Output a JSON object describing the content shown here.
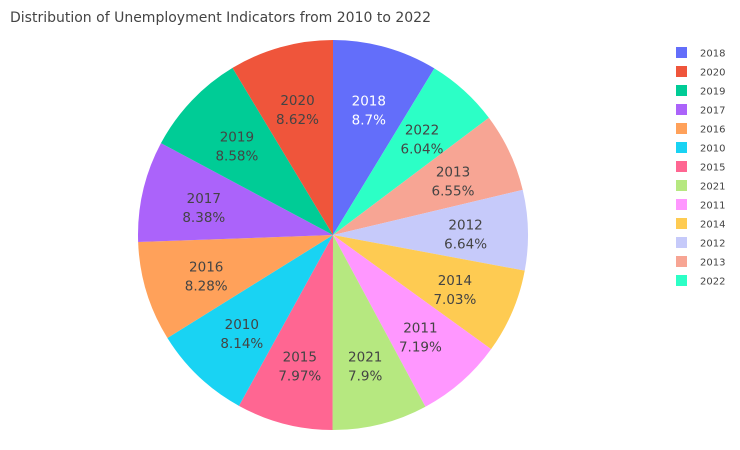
{
  "chart_data": {
    "type": "pie",
    "title": "Distribution of Unemployment Indicators from 2010 to 2022",
    "direction": "clockwise",
    "start": "top",
    "legend_position": "right",
    "slices": [
      {
        "label": "2018",
        "percent": 8.7,
        "display": "8.7%",
        "color": "#636efa",
        "text_color": "#ffffff"
      },
      {
        "label": "2022",
        "percent": 6.04,
        "display": "6.04%",
        "color": "#2cffc6",
        "text_color": "#444444"
      },
      {
        "label": "2013",
        "percent": 6.55,
        "display": "6.55%",
        "color": "#f7a594",
        "text_color": "#444444"
      },
      {
        "label": "2012",
        "percent": 6.64,
        "display": "6.64%",
        "color": "#c6cafa",
        "text_color": "#444444"
      },
      {
        "label": "2014",
        "percent": 7.03,
        "display": "7.03%",
        "color": "#fecb52",
        "text_color": "#444444"
      },
      {
        "label": "2011",
        "percent": 7.19,
        "display": "7.19%",
        "color": "#ff97ff",
        "text_color": "#444444"
      },
      {
        "label": "2021",
        "percent": 7.9,
        "display": "7.9%",
        "color": "#b6e880",
        "text_color": "#444444"
      },
      {
        "label": "2015",
        "percent": 7.97,
        "display": "7.97%",
        "color": "#ff6692",
        "text_color": "#444444"
      },
      {
        "label": "2010",
        "percent": 8.14,
        "display": "8.14%",
        "color": "#19d3f3",
        "text_color": "#444444"
      },
      {
        "label": "2016",
        "percent": 8.28,
        "display": "8.28%",
        "color": "#ffa15a",
        "text_color": "#444444"
      },
      {
        "label": "2017",
        "percent": 8.38,
        "display": "8.38%",
        "color": "#ab63fa",
        "text_color": "#444444"
      },
      {
        "label": "2019",
        "percent": 8.58,
        "display": "8.58%",
        "color": "#00cc96",
        "text_color": "#444444"
      },
      {
        "label": "2020",
        "percent": 8.62,
        "display": "8.62%",
        "color": "#ef553b",
        "text_color": "#444444"
      }
    ],
    "legend": [
      {
        "label": "2018",
        "color": "#636efa"
      },
      {
        "label": "2020",
        "color": "#ef553b"
      },
      {
        "label": "2019",
        "color": "#00cc96"
      },
      {
        "label": "2017",
        "color": "#ab63fa"
      },
      {
        "label": "2016",
        "color": "#ffa15a"
      },
      {
        "label": "2010",
        "color": "#19d3f3"
      },
      {
        "label": "2015",
        "color": "#ff6692"
      },
      {
        "label": "2021",
        "color": "#b6e880"
      },
      {
        "label": "2011",
        "color": "#ff97ff"
      },
      {
        "label": "2014",
        "color": "#fecb52"
      },
      {
        "label": "2012",
        "color": "#c6cafa"
      },
      {
        "label": "2013",
        "color": "#f7a594"
      },
      {
        "label": "2022",
        "color": "#2cffc6"
      }
    ]
  }
}
